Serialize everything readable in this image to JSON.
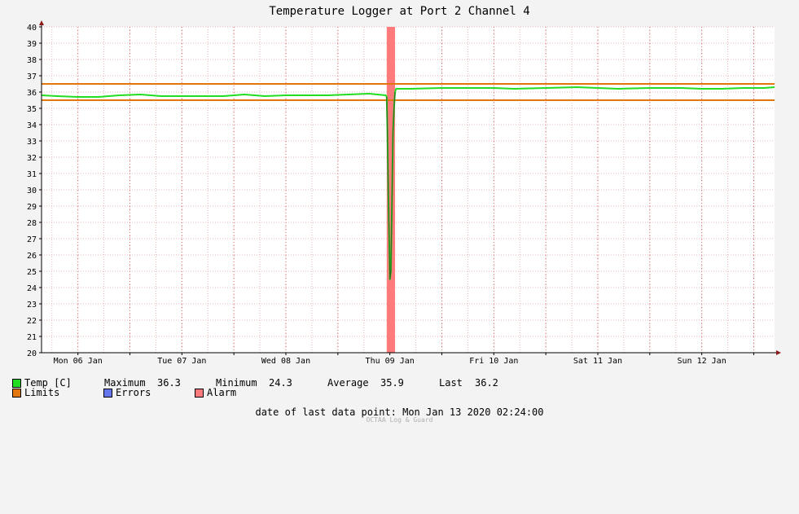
{
  "chart_data": {
    "type": "line",
    "title": "Temperature Logger at Port 2 Channel 4",
    "xlabel": "",
    "ylabel": "",
    "ylim": [
      20,
      40
    ],
    "ytick_labels": [
      "20",
      "21",
      "22",
      "23",
      "24",
      "25",
      "26",
      "27",
      "28",
      "29",
      "30",
      "31",
      "32",
      "33",
      "34",
      "35",
      "36",
      "37",
      "38",
      "39",
      "40"
    ],
    "xlim_days": [
      5.65,
      12.7
    ],
    "xtick_labels": [
      "Mon 06 Jan",
      "Tue 07 Jan",
      "Wed 08 Jan",
      "Thu 09 Jan",
      "Fri 10 Jan",
      "Sat 11 Jan",
      "Sun 12 Jan"
    ],
    "xtick_days": [
      6,
      7,
      8,
      9,
      10,
      11,
      12
    ],
    "grid": true,
    "limits": {
      "upper": 36.5,
      "lower": 35.5
    },
    "alarm_band_days": [
      8.97,
      9.05
    ],
    "series": [
      {
        "name": "Temp [C]",
        "x_days": [
          5.65,
          5.8,
          6.0,
          6.2,
          6.4,
          6.6,
          6.8,
          7.0,
          7.2,
          7.4,
          7.6,
          7.8,
          8.0,
          8.2,
          8.4,
          8.6,
          8.8,
          8.96,
          8.97,
          8.975,
          8.985,
          8.995,
          9.0,
          9.01,
          9.02,
          9.03,
          9.04,
          9.05,
          9.06,
          9.2,
          9.5,
          9.8,
          10.0,
          10.2,
          10.5,
          10.8,
          11.0,
          11.2,
          11.5,
          11.8,
          12.0,
          12.2,
          12.4,
          12.6,
          12.7
        ],
        "values": [
          35.8,
          35.75,
          35.7,
          35.7,
          35.8,
          35.85,
          35.75,
          35.75,
          35.75,
          35.75,
          35.85,
          35.75,
          35.8,
          35.8,
          35.8,
          35.85,
          35.9,
          35.8,
          35.7,
          34.0,
          30.0,
          26.5,
          24.5,
          25.0,
          29.0,
          33.5,
          35.0,
          36.0,
          36.2,
          36.2,
          36.25,
          36.25,
          36.25,
          36.2,
          36.25,
          36.3,
          36.25,
          36.2,
          36.25,
          36.25,
          36.2,
          36.2,
          36.25,
          36.25,
          36.3
        ]
      }
    ]
  },
  "legend": {
    "temp_label": "Temp [C]",
    "maximum_label": "Maximum",
    "maximum_value": "36.3",
    "minimum_label": "Minimum",
    "minimum_value": "24.3",
    "average_label": "Average",
    "average_value": "35.9",
    "last_label": "Last",
    "last_value": "36.2",
    "limits_label": "Limits",
    "errors_label": "Errors",
    "alarm_label": "Alarm"
  },
  "footer": {
    "date_label": "date of last data point:",
    "date_value": "Mon Jan 13 2020 02:24:00",
    "credit": "OCTAA Log & Guard"
  },
  "colors": {
    "series": "#22dd22",
    "series_dark": "#2f6b1e",
    "limits": "#e2760f",
    "errors": "#6677ee",
    "alarm": "#ff7a7a",
    "grid_minor": "#e9b8b8",
    "axis": "#000000",
    "arrow": "#8b1a1a"
  }
}
